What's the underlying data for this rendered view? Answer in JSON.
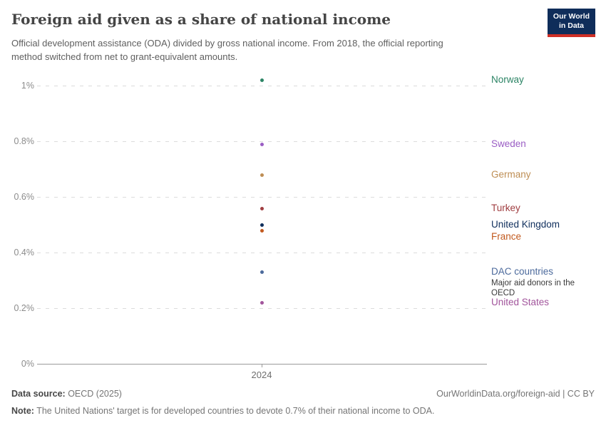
{
  "header": {
    "title": "Foreign aid given as a share of national income",
    "subtitle": "Official development assistance (ODA) divided by gross national income. From 2018, the official reporting method switched from net to grant-equivalent amounts.",
    "logo": {
      "line1": "Our World",
      "line2": "in Data",
      "bg_color": "#0f2d5a",
      "stripe_color": "#cf2f26"
    }
  },
  "chart_data": {
    "type": "scatter",
    "title": "Foreign aid given as a share of national income",
    "x_tick_label": "2024",
    "x_values": [
      2024
    ],
    "y_unit": "% of gross national income",
    "ylim": [
      0,
      1.08
    ],
    "grid": "horizontal dashed gridlines, solid zero axis",
    "legend": "direct colored labels at right of plot",
    "y_ticks": [
      {
        "label": "1%",
        "value": 1.0
      },
      {
        "label": "0.8%",
        "value": 0.8
      },
      {
        "label": "0.6%",
        "value": 0.6
      },
      {
        "label": "0.4%",
        "value": 0.4
      },
      {
        "label": "0.2%",
        "value": 0.2
      },
      {
        "label": "0%",
        "value": 0
      }
    ],
    "series": [
      {
        "name": "Norway",
        "year": 2024,
        "value": 1.02,
        "color": "#2C8465"
      },
      {
        "name": "Sweden",
        "year": 2024,
        "value": 0.79,
        "color": "#9A5DC4"
      },
      {
        "name": "Germany",
        "year": 2024,
        "value": 0.68,
        "color": "#BE8E54"
      },
      {
        "name": "Turkey",
        "year": 2024,
        "value": 0.56,
        "color": "#A03E41"
      },
      {
        "name": "United Kingdom",
        "year": 2024,
        "value": 0.5,
        "color": "#0F2E5C"
      },
      {
        "name": "France",
        "year": 2024,
        "value": 0.48,
        "color": "#C25A1F"
      },
      {
        "name": "DAC countries",
        "year": 2024,
        "value": 0.33,
        "color": "#4C6A9C",
        "sublabel": "Major aid donors in the OECD"
      },
      {
        "name": "United States",
        "year": 2024,
        "value": 0.22,
        "color": "#A2559C"
      }
    ]
  },
  "footer": {
    "source_label": "Data source:",
    "source_value": " OECD (2025)",
    "link": "OurWorldinData.org/foreign-aid | CC BY",
    "note_label": "Note:",
    "note_value": " The United Nations' target is for developed countries to devote 0.7% of their national income to ODA."
  }
}
